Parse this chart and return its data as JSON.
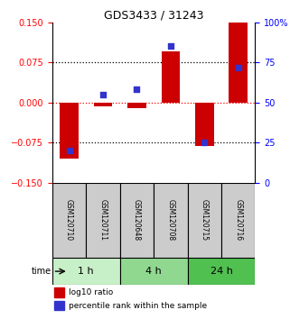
{
  "title": "GDS3433 / 31243",
  "samples": [
    "GSM120710",
    "GSM120711",
    "GSM120648",
    "GSM120708",
    "GSM120715",
    "GSM120716"
  ],
  "log10_ratio": [
    -0.105,
    -0.008,
    -0.01,
    0.095,
    -0.082,
    0.15
  ],
  "percentile_rank": [
    20,
    55,
    58,
    85,
    25,
    72
  ],
  "time_groups": [
    {
      "label": "1 h",
      "indices": [
        0,
        1
      ],
      "color": "#c8f0c8"
    },
    {
      "label": "4 h",
      "indices": [
        2,
        3
      ],
      "color": "#90d890"
    },
    {
      "label": "24 h",
      "indices": [
        4,
        5
      ],
      "color": "#50c050"
    }
  ],
  "bar_color": "#cc0000",
  "dot_color": "#3333cc",
  "ylim": [
    -0.15,
    0.15
  ],
  "yticks_left": [
    -0.15,
    -0.075,
    0,
    0.075,
    0.15
  ],
  "yticks_right": [
    0,
    25,
    50,
    75,
    100
  ],
  "background_color": "#ffffff",
  "label_log10": "log10 ratio",
  "label_pct": "percentile rank within the sample",
  "sample_box_color": "#cccccc",
  "bar_width": 0.55
}
